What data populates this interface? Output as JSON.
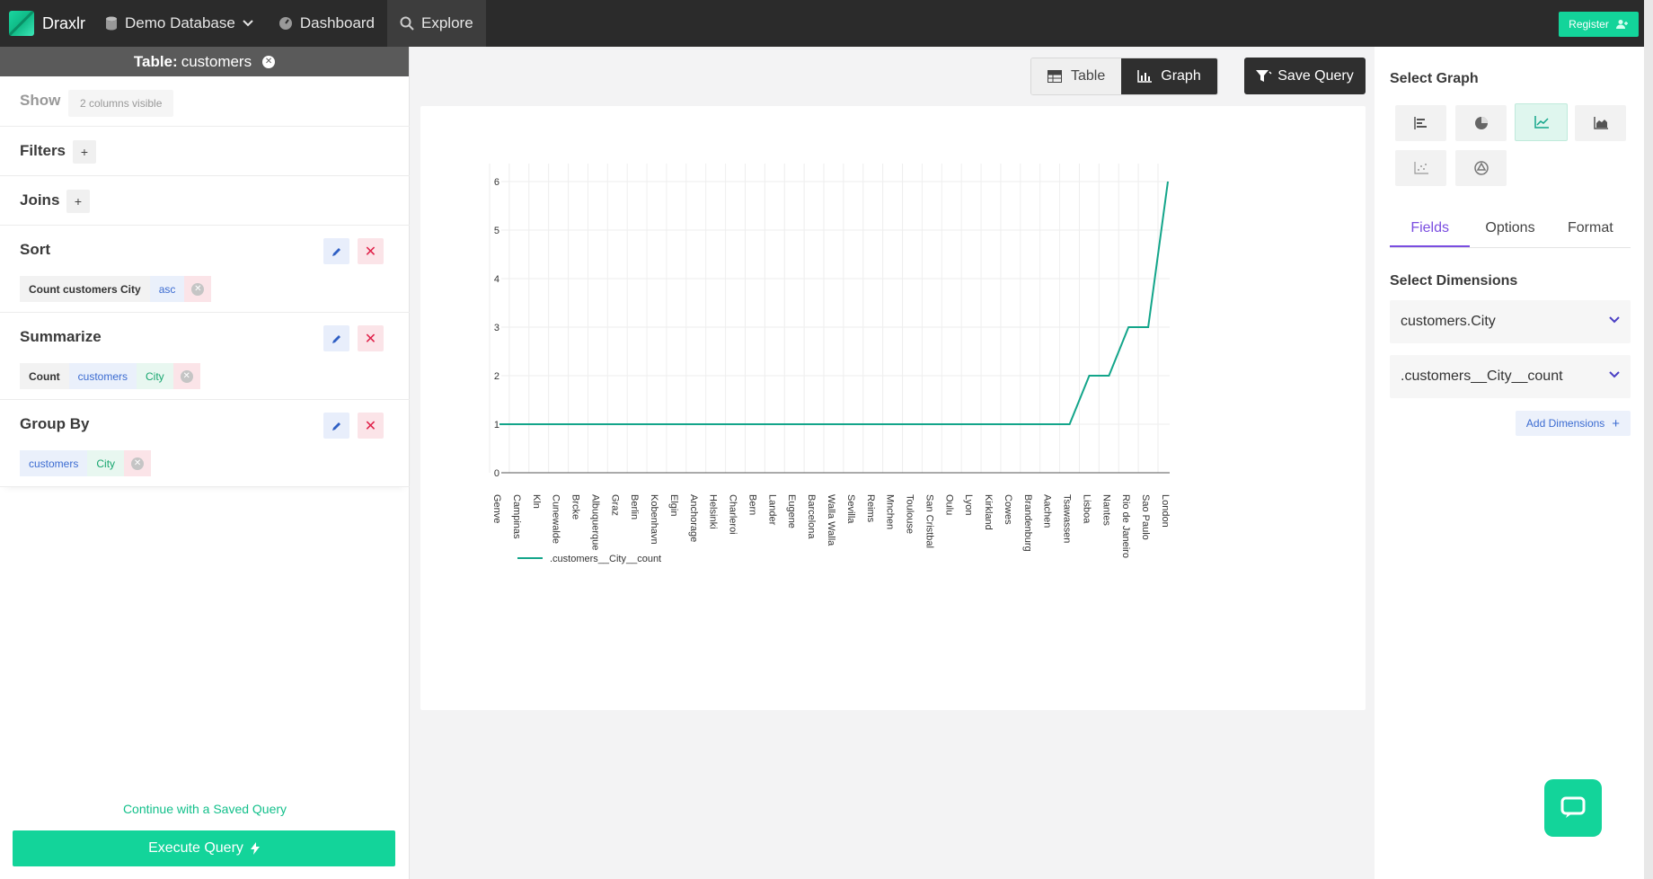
{
  "app": {
    "brand": "Draxlr"
  },
  "nav": {
    "database": "Demo Database",
    "dashboard": "Dashboard",
    "explore": "Explore",
    "register": "Register"
  },
  "left": {
    "table_prefix": "Table:",
    "table_name": "customers",
    "show_label": "Show",
    "columns_visible": "2 columns visible",
    "filters_label": "Filters",
    "joins_label": "Joins",
    "sort": {
      "label": "Sort",
      "field": "Count customers City",
      "direction": "asc"
    },
    "summarize": {
      "label": "Summarize",
      "fn": "Count",
      "table": "customers",
      "column": "City"
    },
    "group_by": {
      "label": "Group By",
      "table": "customers",
      "column": "City"
    },
    "continue_link": "Continue with a Saved Query",
    "execute": "Execute Query"
  },
  "view": {
    "table": "Table",
    "graph": "Graph",
    "save_query": "Save Query"
  },
  "right": {
    "select_graph": "Select Graph",
    "tabs": [
      "Fields",
      "Options",
      "Format"
    ],
    "select_dimensions": "Select Dimensions",
    "dimensions": [
      "customers.City",
      ".customers__City__count"
    ],
    "add_dimensions": "Add Dimensions"
  },
  "colors": {
    "accent": "#13d49a",
    "line": "#13a58a"
  },
  "chart_data": {
    "type": "line",
    "categories": [
      "Genve",
      "Campinas",
      "Kln",
      "Cunewalde",
      "Brcke",
      "Albuquerque",
      "Graz",
      "Berlin",
      "Kobenhavn",
      "Elgin",
      "Anchorage",
      "Helsinki",
      "Charleroi",
      "Bern",
      "Lander",
      "Eugene",
      "Barcelona",
      "Walla Walla",
      "Sevilla",
      "Reims",
      "Mnchen",
      "Toulouse",
      "San Cristbal",
      "Oulu",
      "Lyon",
      "Kirkland",
      "Cowes",
      "Brandenburg",
      "Aachen",
      "Tsawassen",
      "Lisboa",
      "Nantes",
      "Rio de Janeiro",
      "Sao Paulo",
      "London"
    ],
    "series": [
      {
        "name": ".customers__City__count",
        "values": [
          1,
          1,
          1,
          1,
          1,
          1,
          1,
          1,
          1,
          1,
          1,
          1,
          1,
          1,
          1,
          1,
          1,
          1,
          1,
          1,
          1,
          1,
          1,
          1,
          1,
          1,
          1,
          1,
          1,
          1,
          2,
          2,
          3,
          3,
          6
        ]
      }
    ],
    "yticks": [
      0,
      1,
      2,
      3,
      4,
      5,
      6
    ],
    "ylim": [
      0,
      6
    ],
    "grid": true,
    "legend": "bottom-left"
  }
}
